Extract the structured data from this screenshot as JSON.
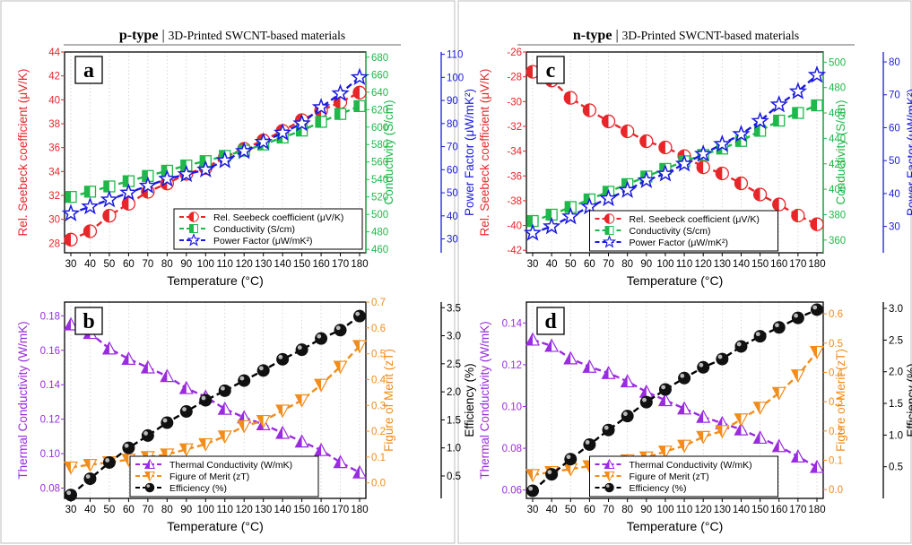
{
  "headers": {
    "left": {
      "bold": "p-type",
      "sep": "|",
      "rest": "3D-Printed SWCNT-based materials"
    },
    "right": {
      "bold": "n-type",
      "sep": "|",
      "rest": "3D-Printed SWCNT-based materials"
    }
  },
  "colors": {
    "red": "#e8262a",
    "green": "#1fb84a",
    "blue": "#1a1ae0",
    "purple": "#9a2be0",
    "orange": "#f28c1a",
    "black": "#000000"
  },
  "chart_data": [
    {
      "panel": "a",
      "type": "line",
      "xlabel": "Temperature (°C)",
      "xlim": [
        30,
        180
      ],
      "x": [
        30,
        40,
        50,
        60,
        70,
        80,
        90,
        100,
        110,
        120,
        130,
        140,
        150,
        160,
        170,
        180
      ],
      "axes": [
        {
          "label": "Rel. Seebeck coefficient (μV/K)",
          "side": "left",
          "color": "red",
          "ylim": [
            27.2,
            44
          ],
          "ticks": [
            28,
            30,
            32,
            34,
            36,
            38,
            40,
            42,
            44
          ]
        },
        {
          "label": "Conductivity (S/cm)",
          "side": "right-1",
          "color": "green",
          "ylim": [
            456,
            686
          ],
          "ticks": [
            460,
            480,
            500,
            520,
            540,
            560,
            580,
            600,
            620,
            640,
            660,
            680
          ]
        },
        {
          "label": "Power Factor (μW/mK²)",
          "side": "right-2",
          "color": "blue",
          "ylim": [
            24,
            111
          ],
          "ticks": [
            30,
            40,
            50,
            60,
            70,
            80,
            90,
            100,
            110
          ]
        }
      ],
      "series": [
        {
          "name": "Rel. Seebeck coefficient (μV/K)",
          "axis": 0,
          "marker": "half-circle",
          "color": "red",
          "values": [
            28.3,
            29.0,
            30.3,
            31.3,
            32.3,
            33.0,
            33.8,
            34.3,
            35.2,
            35.9,
            36.6,
            37.4,
            38.3,
            39.1,
            39.8,
            40.6
          ]
        },
        {
          "name": "Conductivity (S/cm)",
          "axis": 1,
          "marker": "half-square",
          "color": "green",
          "values": [
            520,
            526,
            532,
            538,
            544,
            550,
            556,
            561,
            567,
            573,
            580,
            588,
            596,
            606,
            615,
            624
          ]
        },
        {
          "name": "Power Factor (μW/mK²)",
          "axis": 2,
          "marker": "star",
          "color": "blue",
          "values": [
            41,
            44,
            47,
            50,
            53,
            56,
            58,
            60,
            64,
            68,
            72,
            76,
            80,
            87,
            93,
            100
          ]
        }
      ],
      "legend": "bottom-right"
    },
    {
      "panel": "b",
      "type": "line",
      "xlabel": "Temperature (°C)",
      "xlim": [
        30,
        180
      ],
      "x": [
        30,
        40,
        50,
        60,
        70,
        80,
        90,
        100,
        110,
        120,
        130,
        140,
        150,
        160,
        170,
        180
      ],
      "axes": [
        {
          "label": "Thermal Conductivity (W/mK)",
          "side": "left",
          "color": "purple",
          "ylim": [
            0.074,
            0.188
          ],
          "ticks": [
            0.08,
            0.1,
            0.12,
            0.14,
            0.16,
            0.18
          ]
        },
        {
          "label": "Figure of Merit (zT)",
          "side": "right-1",
          "color": "orange",
          "ylim": [
            -0.06,
            0.7
          ],
          "ticks": [
            0.0,
            0.1,
            0.2,
            0.3,
            0.4,
            0.5,
            0.6,
            0.7
          ]
        },
        {
          "label": "Efficiency (%)",
          "side": "right-2",
          "color": "black",
          "ylim": [
            0.1,
            3.6
          ],
          "ticks": [
            0.5,
            1.0,
            1.5,
            2.0,
            2.5,
            3.0,
            3.5
          ]
        }
      ],
      "series": [
        {
          "name": "Thermal Conductivity (W/mK)",
          "axis": 0,
          "marker": "half-triangle-up",
          "color": "purple",
          "values": [
            0.175,
            0.17,
            0.161,
            0.155,
            0.15,
            0.145,
            0.138,
            0.133,
            0.126,
            0.121,
            0.117,
            0.112,
            0.107,
            0.102,
            0.095,
            0.089
          ]
        },
        {
          "name": "Figure of Merit (zT)",
          "axis": 1,
          "marker": "half-triangle-down",
          "color": "orange",
          "values": [
            0.06,
            0.07,
            0.08,
            0.09,
            0.1,
            0.11,
            0.13,
            0.15,
            0.18,
            0.22,
            0.24,
            0.28,
            0.32,
            0.38,
            0.45,
            0.53
          ]
        },
        {
          "name": "Efficiency (%)",
          "axis": 2,
          "marker": "sphere",
          "color": "black",
          "values": [
            0.16,
            0.45,
            0.74,
            1.0,
            1.22,
            1.45,
            1.65,
            1.85,
            2.02,
            2.2,
            2.38,
            2.58,
            2.75,
            2.95,
            3.1,
            3.35
          ]
        }
      ],
      "legend": "bottom-center"
    },
    {
      "panel": "c",
      "type": "line",
      "xlabel": "Temperature (°C)",
      "xlim": [
        30,
        180
      ],
      "x": [
        30,
        40,
        50,
        60,
        70,
        80,
        90,
        100,
        110,
        120,
        130,
        140,
        150,
        160,
        170,
        180
      ],
      "axes": [
        {
          "label": "Rel. Seebeck coefficient (μV/K)",
          "side": "left",
          "color": "red",
          "ylim": [
            -42.2,
            -26
          ],
          "ticks": [
            -42,
            -40,
            -38,
            -36,
            -34,
            -32,
            -30,
            -28,
            -26
          ]
        },
        {
          "label": "Conductivity (S/cm)",
          "side": "right-1",
          "color": "green",
          "ylim": [
            350,
            508
          ],
          "ticks": [
            360,
            380,
            400,
            420,
            440,
            460,
            480,
            500
          ]
        },
        {
          "label": "Power Factor (μW/mK²)",
          "side": "right-2",
          "color": "blue",
          "ylim": [
            22,
            83
          ],
          "ticks": [
            30,
            40,
            50,
            60,
            70,
            80
          ]
        }
      ],
      "series": [
        {
          "name": "Rel. Seebeck coefficient (μV/K)",
          "axis": 0,
          "marker": "half-circle",
          "color": "red",
          "values": [
            -27.6,
            -28.3,
            -29.7,
            -30.7,
            -31.6,
            -32.4,
            -33.2,
            -33.7,
            -34.4,
            -35.3,
            -35.8,
            -36.6,
            -37.5,
            -38.3,
            -39.2,
            -39.9
          ]
        },
        {
          "name": "Conductivity (S/cm)",
          "axis": 1,
          "marker": "half-square",
          "color": "green",
          "values": [
            375,
            380,
            386,
            392,
            398,
            404,
            410,
            416,
            422,
            427,
            432,
            438,
            446,
            454,
            460,
            466
          ]
        },
        {
          "name": "Power Factor (μW/mK²)",
          "axis": 2,
          "marker": "star",
          "color": "blue",
          "values": [
            28,
            30,
            33,
            36,
            38.5,
            41,
            44,
            46,
            49,
            52,
            55,
            58,
            62,
            67,
            71,
            76
          ]
        }
      ],
      "legend": "bottom-center"
    },
    {
      "panel": "d",
      "type": "line",
      "xlabel": "Temperature (°C)",
      "xlim": [
        30,
        180
      ],
      "x": [
        30,
        40,
        50,
        60,
        70,
        80,
        90,
        100,
        110,
        120,
        130,
        140,
        150,
        160,
        170,
        180
      ],
      "axes": [
        {
          "label": "Thermal Conductivity (W/mK)",
          "side": "left",
          "color": "purple",
          "ylim": [
            0.056,
            0.15
          ],
          "ticks": [
            0.06,
            0.08,
            0.1,
            0.12,
            0.14
          ]
        },
        {
          "label": "Figure of Merit (zT)",
          "side": "right-1",
          "color": "orange",
          "ylim": [
            -0.03,
            0.64
          ],
          "ticks": [
            0.0,
            0.1,
            0.2,
            0.3,
            0.4,
            0.5,
            0.6
          ]
        },
        {
          "label": "Efficiency (%)",
          "side": "right-2",
          "color": "black",
          "ylim": [
            0.0,
            3.1
          ],
          "ticks": [
            0.5,
            1.0,
            1.5,
            2.0,
            2.5,
            3.0
          ]
        }
      ],
      "series": [
        {
          "name": "Thermal Conductivity (W/mK)",
          "axis": 0,
          "marker": "half-triangle-up",
          "color": "purple",
          "values": [
            0.132,
            0.129,
            0.123,
            0.119,
            0.116,
            0.112,
            0.107,
            0.103,
            0.099,
            0.095,
            0.092,
            0.089,
            0.085,
            0.081,
            0.076,
            0.071
          ]
        },
        {
          "name": "Figure of Merit (zT)",
          "axis": 1,
          "marker": "half-triangle-down",
          "color": "orange",
          "values": [
            0.05,
            0.06,
            0.07,
            0.08,
            0.09,
            0.1,
            0.11,
            0.13,
            0.15,
            0.18,
            0.2,
            0.24,
            0.28,
            0.33,
            0.39,
            0.47
          ]
        },
        {
          "name": "Efficiency (%)",
          "axis": 2,
          "marker": "sphere",
          "color": "black",
          "values": [
            0.12,
            0.38,
            0.62,
            0.85,
            1.08,
            1.3,
            1.52,
            1.72,
            1.9,
            2.07,
            2.2,
            2.4,
            2.56,
            2.7,
            2.85,
            2.98
          ]
        }
      ],
      "legend": "bottom-center"
    }
  ]
}
